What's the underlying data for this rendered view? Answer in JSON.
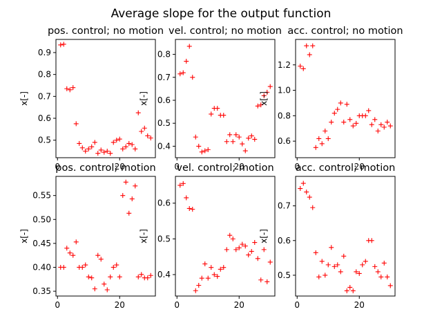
{
  "chart_data": {
    "title": "Average slope for the output function",
    "subplots": [
      {
        "type": "scatter",
        "title": "pos. control; no motion",
        "xlabel": "",
        "ylabel": "x[-]",
        "xlim": [
          -0.5,
          31.5
        ],
        "ylim": [
          0.42,
          0.96
        ],
        "xticks": [
          0,
          20
        ],
        "yticks": [
          0.5,
          0.6,
          0.7,
          0.8,
          0.9
        ],
        "marker": "+",
        "color": "#ff0000",
        "x": [
          1,
          2,
          3,
          4,
          5,
          6,
          7,
          8,
          9,
          10,
          11,
          12,
          13,
          14,
          15,
          16,
          17,
          18,
          19,
          20,
          21,
          22,
          23,
          24,
          25,
          26,
          27,
          28,
          29,
          30
        ],
        "y": [
          0.935,
          0.938,
          0.735,
          0.73,
          0.74,
          0.575,
          0.485,
          0.465,
          0.45,
          0.46,
          0.47,
          0.49,
          0.44,
          0.455,
          0.445,
          0.45,
          0.44,
          0.49,
          0.5,
          0.505,
          0.46,
          0.47,
          0.485,
          0.48,
          0.46,
          0.625,
          0.54,
          0.555,
          0.52,
          0.51
        ]
      },
      {
        "type": "scatter",
        "title": "vel. control; no motion",
        "xlabel": "",
        "ylabel": "x[-]",
        "xlim": [
          -0.5,
          31.5
        ],
        "ylim": [
          0.35,
          0.865
        ],
        "xticks": [
          0,
          20
        ],
        "yticks": [
          0.4,
          0.5,
          0.6,
          0.7,
          0.8
        ],
        "marker": "+",
        "color": "#ff0000",
        "x": [
          1,
          2,
          3,
          4,
          5,
          6,
          7,
          8,
          9,
          10,
          11,
          12,
          13,
          14,
          15,
          16,
          17,
          18,
          19,
          20,
          21,
          22,
          23,
          24,
          25,
          26,
          27,
          28,
          29,
          30
        ],
        "y": [
          0.715,
          0.72,
          0.77,
          0.835,
          0.7,
          0.44,
          0.4,
          0.375,
          0.38,
          0.385,
          0.54,
          0.565,
          0.565,
          0.535,
          0.535,
          0.42,
          0.45,
          0.42,
          0.45,
          0.44,
          0.41,
          0.38,
          0.435,
          0.445,
          0.43,
          0.575,
          0.58,
          0.62,
          0.635,
          0.66
        ]
      },
      {
        "type": "scatter",
        "title": "acc. control; no motion",
        "xlabel": "",
        "ylabel": "x[-]",
        "xlim": [
          -0.5,
          31.5
        ],
        "ylim": [
          0.47,
          1.4
        ],
        "xticks": [
          0,
          20
        ],
        "yticks": [
          0.6,
          0.8,
          1.0,
          1.2
        ],
        "marker": "+",
        "color": "#ff0000",
        "x": [
          1,
          2,
          3,
          4,
          5,
          6,
          7,
          8,
          9,
          10,
          11,
          12,
          13,
          14,
          15,
          16,
          17,
          18,
          19,
          20,
          21,
          22,
          23,
          24,
          25,
          26,
          27,
          28,
          29,
          30
        ],
        "y": [
          1.19,
          1.17,
          1.35,
          1.28,
          1.35,
          0.55,
          0.62,
          0.58,
          0.68,
          0.62,
          0.75,
          0.82,
          0.85,
          0.9,
          0.75,
          0.89,
          0.77,
          0.72,
          0.74,
          0.8,
          0.8,
          0.8,
          0.84,
          0.73,
          0.77,
          0.68,
          0.73,
          0.71,
          0.75,
          0.72
        ]
      },
      {
        "type": "scatter",
        "title": "pos. control; motion",
        "xlabel": "",
        "ylabel": "x[-]",
        "xlim": [
          -0.5,
          31.5
        ],
        "ylim": [
          0.34,
          0.59
        ],
        "xticks": [
          0,
          20
        ],
        "yticks": [
          0.35,
          0.4,
          0.45,
          0.5,
          0.55
        ],
        "marker": "+",
        "color": "#ff0000",
        "x": [
          1,
          2,
          3,
          4,
          5,
          6,
          7,
          8,
          9,
          10,
          11,
          12,
          13,
          14,
          15,
          16,
          17,
          18,
          19,
          20,
          21,
          22,
          23,
          24,
          25,
          26,
          27,
          28,
          29,
          30
        ],
        "y": [
          0.4,
          0.4,
          0.44,
          0.43,
          0.425,
          0.453,
          0.4,
          0.4,
          0.405,
          0.38,
          0.378,
          0.355,
          0.425,
          0.417,
          0.365,
          0.353,
          0.38,
          0.4,
          0.405,
          0.38,
          0.55,
          0.578,
          0.513,
          0.543,
          0.57,
          0.38,
          0.385,
          0.378,
          0.378,
          0.383
        ]
      },
      {
        "type": "scatter",
        "title": "vel. control; motion",
        "xlabel": "",
        "ylabel": "x[-]",
        "xlim": [
          -0.5,
          31.5
        ],
        "ylim": [
          0.34,
          0.675
        ],
        "xticks": [
          0,
          20
        ],
        "yticks": [
          0.4,
          0.5,
          0.6
        ],
        "marker": "+",
        "color": "#ff0000",
        "x": [
          1,
          2,
          3,
          4,
          5,
          6,
          7,
          8,
          9,
          10,
          11,
          12,
          13,
          14,
          15,
          16,
          17,
          18,
          19,
          20,
          21,
          22,
          23,
          24,
          25,
          26,
          27,
          28,
          29,
          30
        ],
        "y": [
          0.65,
          0.655,
          0.615,
          0.585,
          0.583,
          0.355,
          0.37,
          0.39,
          0.43,
          0.39,
          0.42,
          0.4,
          0.395,
          0.415,
          0.42,
          0.47,
          0.51,
          0.5,
          0.47,
          0.475,
          0.485,
          0.48,
          0.455,
          0.465,
          0.49,
          0.445,
          0.385,
          0.47,
          0.38,
          0.435
        ]
      },
      {
        "type": "scatter",
        "title": "acc. control; motion",
        "xlabel": "",
        "ylabel": "x[-]",
        "xlim": [
          -0.5,
          31.5
        ],
        "ylim": [
          0.44,
          0.785
        ],
        "xticks": [
          0,
          20
        ],
        "yticks": [
          0.5,
          0.6,
          0.7
        ],
        "marker": "+",
        "color": "#ff0000",
        "x": [
          1,
          2,
          3,
          4,
          5,
          6,
          7,
          8,
          9,
          10,
          11,
          12,
          13,
          14,
          15,
          16,
          17,
          18,
          19,
          20,
          21,
          22,
          23,
          24,
          25,
          26,
          27,
          28,
          29,
          30
        ],
        "y": [
          0.75,
          0.765,
          0.74,
          0.725,
          0.695,
          0.565,
          0.495,
          0.54,
          0.5,
          0.53,
          0.58,
          0.525,
          0.53,
          0.51,
          0.555,
          0.455,
          0.465,
          0.455,
          0.51,
          0.505,
          0.53,
          0.54,
          0.6,
          0.6,
          0.525,
          0.51,
          0.495,
          0.535,
          0.495,
          0.47
        ]
      }
    ]
  }
}
